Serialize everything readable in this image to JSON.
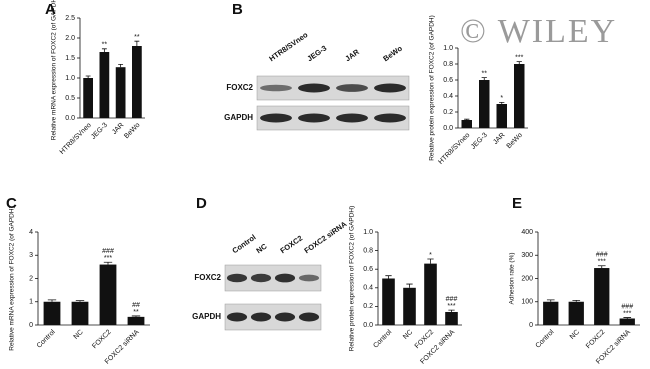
{
  "chart_data": [
    {
      "type": "bar",
      "panel": "A",
      "ylabel": "Relative mRNA expression of FOXC2 (of GAPDH)",
      "categories": [
        "HTR8/SVneo",
        "JEG-3",
        "JAR",
        "BeWo"
      ],
      "values": [
        1.0,
        1.65,
        1.27,
        1.8
      ],
      "errors": [
        0.05,
        0.08,
        0.07,
        0.12
      ],
      "annotations": [
        null,
        [
          "**"
        ],
        null,
        [
          "**"
        ]
      ],
      "color": "#111111",
      "ylim": [
        0,
        2.5
      ],
      "yticks": [
        {
          "value": 0,
          "label": "0.0"
        },
        0.5,
        {
          "value": 1,
          "label": "1.0"
        },
        1.5,
        {
          "value": 2,
          "label": "2.0"
        },
        2.5
      ]
    },
    {
      "type": "bar",
      "ylabel": "Relative protein expression of FOXC2 (of GAPDH)",
      "categories": [
        "HTR8/SVneo",
        "JEG-3",
        "JAR",
        "BeWo"
      ],
      "values": [
        0.1,
        0.6,
        0.3,
        0.8
      ],
      "errors": [
        0.01,
        0.03,
        0.02,
        0.03
      ],
      "annotations": [
        null,
        [
          "**"
        ],
        [
          "*"
        ],
        [
          "***"
        ]
      ],
      "color": "#111111",
      "ylim": [
        0,
        1
      ],
      "yticks": [
        {
          "value": 0,
          "label": "0.0"
        },
        0.2,
        0.4,
        0.6,
        0.8,
        {
          "value": 1,
          "label": "1.0"
        }
      ]
    },
    {
      "type": "bar",
      "panel": "C",
      "ylabel": "Relative mRNA expression of FOXC2 (of GAPDH)",
      "categories": [
        "Control",
        "NC",
        "FOXC2",
        "FOXC2 siRNA"
      ],
      "values": [
        1.0,
        1.0,
        2.6,
        0.35
      ],
      "errors": [
        0.08,
        0.05,
        0.1,
        0.04
      ],
      "annotations": [
        null,
        null,
        [
          "###",
          "***"
        ],
        [
          "##",
          "**"
        ]
      ],
      "color": "#111111",
      "ylim": [
        0,
        4
      ],
      "yticks": [
        0,
        1,
        2,
        3,
        4
      ]
    },
    {
      "type": "bar",
      "ylabel": "Relative protein expression of FOXC2 (of GAPDH)",
      "categories": [
        "Control",
        "NC",
        "FOXC2",
        "FOXC2 siRNA"
      ],
      "values": [
        0.5,
        0.4,
        0.66,
        0.14
      ],
      "errors": [
        0.03,
        0.04,
        0.05,
        0.02
      ],
      "annotations": [
        null,
        null,
        [
          "*"
        ],
        [
          "###",
          "***"
        ]
      ],
      "color": "#111111",
      "ylim": [
        0,
        1
      ],
      "yticks": [
        {
          "value": 0,
          "label": "0.0"
        },
        0.2,
        0.4,
        0.6,
        0.8,
        {
          "value": 1,
          "label": "1.0"
        }
      ]
    },
    {
      "type": "bar",
      "panel": "E",
      "ylabel": "Adhesion rate (%)",
      "categories": [
        "Control",
        "NC",
        "FOXC2",
        "FOXC2 siRNA"
      ],
      "values": [
        100,
        100,
        245,
        28
      ],
      "errors": [
        8,
        6,
        10,
        4
      ],
      "annotations": [
        null,
        null,
        [
          "###",
          "***"
        ],
        [
          "###",
          "***"
        ]
      ],
      "color": "#111111",
      "ylim": [
        0,
        400
      ],
      "yticks": [
        0,
        100,
        200,
        300,
        400
      ]
    }
  ],
  "blots": [
    {
      "panel": "B",
      "lanes": [
        "HTR8/SVneo",
        "JEG-3",
        "JAR",
        "BeWo"
      ],
      "rows": [
        "FOXC2",
        "GAPDH"
      ]
    },
    {
      "panel": "D",
      "lanes": [
        "Control",
        "NC",
        "FOXC2",
        "FOXC2 siRNA"
      ],
      "rows": [
        "FOXC2",
        "GAPDH"
      ]
    }
  ],
  "watermark": "© WILEY"
}
